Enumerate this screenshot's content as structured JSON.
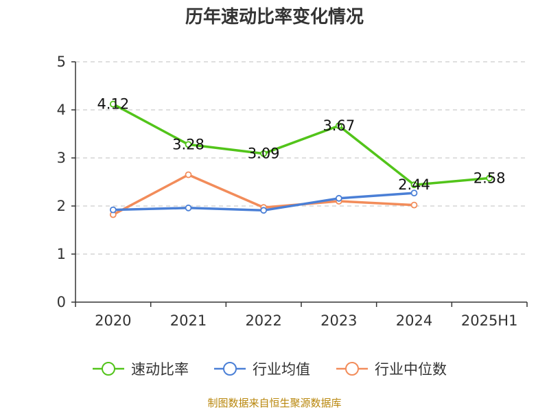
{
  "chart_data": {
    "type": "line",
    "title": "历年速动比率变化情况",
    "categories": [
      "2020",
      "2021",
      "2022",
      "2023",
      "2024",
      "2025H1"
    ],
    "ylim": [
      0,
      5
    ],
    "yticks": [
      0,
      1,
      2,
      3,
      4,
      5
    ],
    "grid": true,
    "legend_position": "bottom",
    "series": [
      {
        "name": "速动比率",
        "color": "#52c41a",
        "values": [
          4.12,
          3.28,
          3.09,
          3.67,
          2.44,
          2.58
        ],
        "labels": [
          "4.12",
          "3.28",
          "3.09",
          "3.67",
          "2.44",
          "2.58"
        ]
      },
      {
        "name": "行业均值",
        "color": "#4a7fd6",
        "values": [
          1.92,
          1.96,
          1.91,
          2.16,
          2.27,
          null
        ]
      },
      {
        "name": "行业中位数",
        "color": "#f28c5a",
        "values": [
          1.82,
          2.65,
          1.97,
          2.1,
          2.02,
          null
        ]
      }
    ]
  },
  "source": "制图数据来自恒生聚源数据库"
}
